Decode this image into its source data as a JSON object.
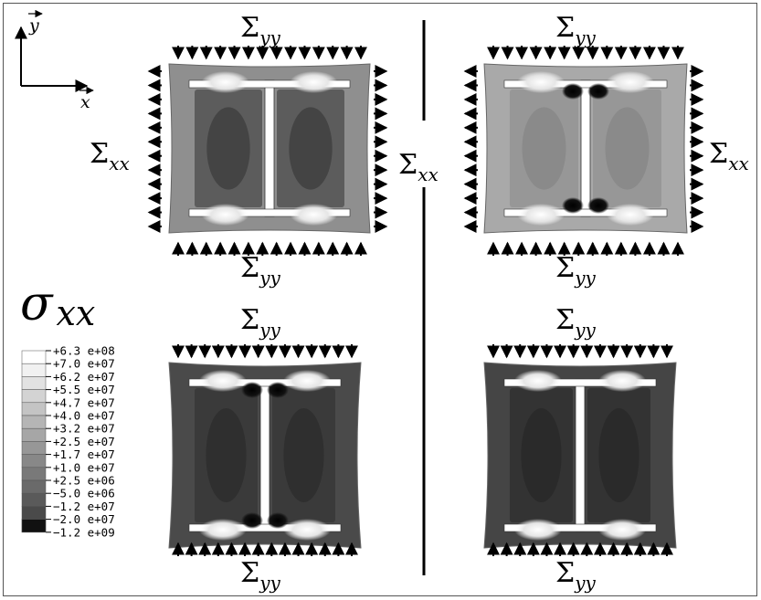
{
  "axes": {
    "x_label": "x",
    "y_label": "y"
  },
  "labels": {
    "sigma": "Σ",
    "yy": "yy",
    "xx": "xx",
    "sigma_symbol": "σ",
    "sigma_sub": "xx"
  },
  "legend": {
    "title": "σxx",
    "entries": [
      {
        "label": "+6.3 e+08",
        "color": "#ffffff"
      },
      {
        "label": "+7.0 e+07",
        "color": "#f1f1f1"
      },
      {
        "label": "+6.2 e+07",
        "color": "#e2e2e2"
      },
      {
        "label": "+5.5 e+07",
        "color": "#d3d3d3"
      },
      {
        "label": "+4.7 e+07",
        "color": "#c4c4c4"
      },
      {
        "label": "+4.0 e+07",
        "color": "#b5b5b5"
      },
      {
        "label": "+3.2 e+07",
        "color": "#a6a6a6"
      },
      {
        "label": "+2.5 e+07",
        "color": "#979797"
      },
      {
        "label": "+1.7 e+07",
        "color": "#888888"
      },
      {
        "label": "+1.0 e+07",
        "color": "#797979"
      },
      {
        "label": "+2.5 e+06",
        "color": "#6a6a6a"
      },
      {
        "label": "−5.0 e+06",
        "color": "#5a5a5a"
      },
      {
        "label": "−1.2 e+07",
        "color": "#4a4a4a"
      },
      {
        "label": "−2.0 e+07",
        "color": "#383838"
      },
      {
        "label": "−1.2 e+09",
        "color": "#111111"
      }
    ]
  },
  "colors": {
    "panel_tl_bg": "#8f8f8f",
    "panel_tl_inner": "#5c5c5c",
    "panel_tr_bg": "#a9a9a9",
    "panel_tr_inner": "#979797",
    "panel_bl_bg": "#4a4a4a",
    "panel_bl_inner": "#3a3a3a",
    "panel_br_bg": "#454545",
    "panel_br_inner": "#333333"
  }
}
